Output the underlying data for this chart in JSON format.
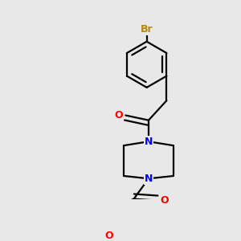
{
  "background_color": "#e8e8e8",
  "atom_colors": {
    "N": "#0000ff",
    "O": "#ff0000",
    "Br": "#b8860b"
  },
  "bond_color": "#000000",
  "bond_width": 1.6
}
